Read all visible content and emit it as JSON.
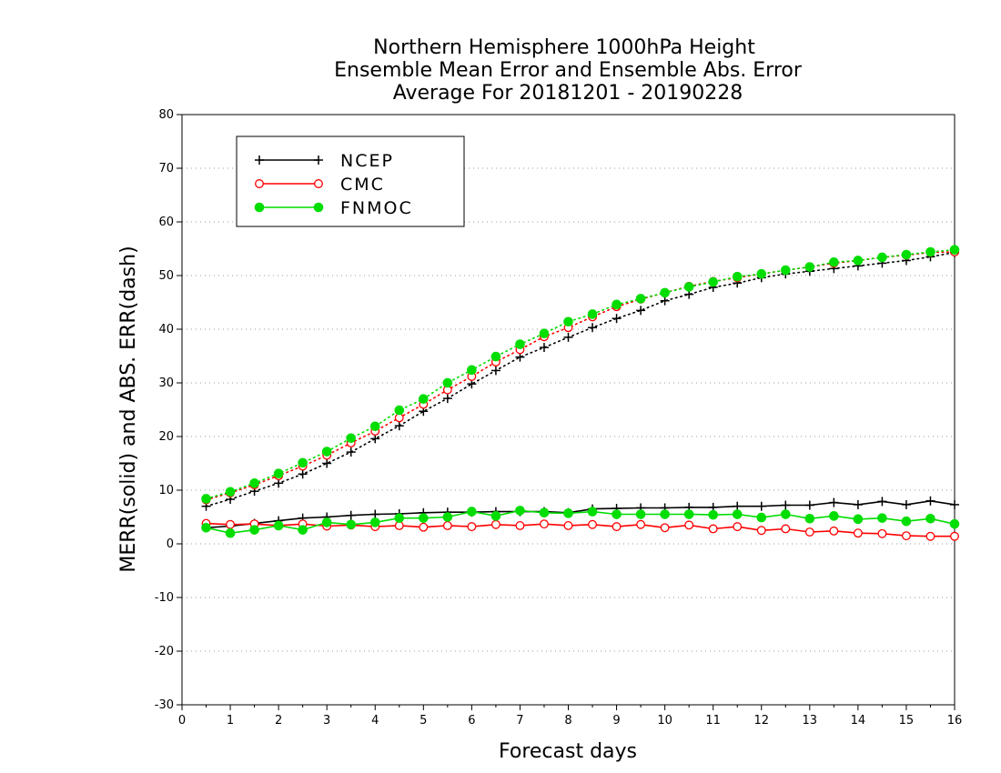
{
  "chart_data": {
    "type": "line",
    "title_lines": [
      "Northern Hemisphere 1000hPa Height",
      "Ensemble Mean Error and Ensemble Abs. Error",
      "Average For 20181201 - 20190228"
    ],
    "xlabel": "Forecast days",
    "ylabel": "MERR(solid) and ABS. ERR(dash)",
    "xlim": [
      0,
      16
    ],
    "ylim": [
      -30,
      80
    ],
    "x_ticks": [
      "0",
      "1",
      "2",
      "3",
      "4",
      "5",
      "6",
      "7",
      "8",
      "9",
      "10",
      "11",
      "12",
      "13",
      "14",
      "15",
      "16"
    ],
    "y_ticks": [
      "-30",
      "-20",
      "-10",
      "0",
      "10",
      "20",
      "30",
      "40",
      "50",
      "60",
      "70",
      "80"
    ],
    "grid": "horizontal dotted",
    "legend_position": "top-left",
    "x": [
      0.5,
      1,
      1.5,
      2,
      2.5,
      3,
      3.5,
      4,
      4.5,
      5,
      5.5,
      6,
      6.5,
      7,
      7.5,
      8,
      8.5,
      9,
      9.5,
      10,
      10.5,
      11,
      11.5,
      12,
      12.5,
      13,
      13.5,
      14,
      14.5,
      15,
      15.5,
      16
    ],
    "series": [
      {
        "name": "NCEP",
        "color": "#000000",
        "marker": "plus",
        "mean_error": [
          3.0,
          3.3,
          3.8,
          4.3,
          4.8,
          5.0,
          5.3,
          5.5,
          5.6,
          5.8,
          5.9,
          5.9,
          6.0,
          6.0,
          6.0,
          5.8,
          6.5,
          6.6,
          6.7,
          6.7,
          6.8,
          6.8,
          7.0,
          7.0,
          7.2,
          7.2,
          7.7,
          7.3,
          7.9,
          7.3,
          8.0,
          7.3
        ],
        "abs_error": [
          7.0,
          8.3,
          9.8,
          11.3,
          13.0,
          15.0,
          17.1,
          19.6,
          22.0,
          24.7,
          27.1,
          29.8,
          32.3,
          34.8,
          36.6,
          38.5,
          40.3,
          42.0,
          43.5,
          45.3,
          46.5,
          47.8,
          48.6,
          49.6,
          50.3,
          50.8,
          51.3,
          51.8,
          52.3,
          52.8,
          53.5,
          54.3
        ]
      },
      {
        "name": "CMC",
        "color": "#ff0000",
        "marker": "open-circle",
        "mean_error": [
          3.8,
          3.6,
          3.7,
          3.4,
          3.7,
          3.3,
          3.5,
          3.2,
          3.4,
          3.1,
          3.4,
          3.2,
          3.6,
          3.4,
          3.7,
          3.4,
          3.6,
          3.2,
          3.6,
          3.0,
          3.5,
          2.8,
          3.2,
          2.5,
          2.8,
          2.2,
          2.4,
          2.0,
          1.9,
          1.5,
          1.4,
          1.4
        ],
        "abs_error": [
          8.2,
          9.5,
          11.0,
          12.7,
          14.5,
          16.5,
          18.8,
          21.0,
          23.5,
          26.0,
          28.7,
          31.2,
          33.9,
          36.2,
          38.6,
          40.3,
          42.3,
          44.2,
          45.6,
          46.8,
          48.0,
          48.9,
          49.6,
          50.3,
          51.0,
          51.6,
          52.3,
          52.8,
          53.4,
          53.8,
          54.3,
          54.4
        ]
      },
      {
        "name": "FNMOC",
        "color": "#00dd00",
        "marker": "filled-circle",
        "mean_error": [
          3.0,
          2.0,
          2.6,
          3.4,
          2.6,
          4.0,
          3.6,
          4.0,
          4.8,
          4.8,
          5.0,
          6.0,
          5.2,
          6.2,
          5.8,
          5.7,
          6.0,
          5.5,
          5.5,
          5.5,
          5.5,
          5.4,
          5.5,
          4.9,
          5.5,
          4.7,
          5.2,
          4.6,
          4.8,
          4.2,
          4.7,
          3.7
        ],
        "abs_error": [
          8.4,
          9.7,
          11.3,
          13.1,
          15.1,
          17.2,
          19.7,
          21.9,
          24.9,
          27.0,
          30.0,
          32.4,
          34.9,
          37.2,
          39.2,
          41.4,
          42.8,
          44.6,
          45.7,
          46.8,
          47.9,
          48.8,
          49.8,
          50.3,
          51.0,
          51.6,
          52.5,
          52.8,
          53.4,
          53.9,
          54.4,
          54.8
        ]
      }
    ]
  }
}
